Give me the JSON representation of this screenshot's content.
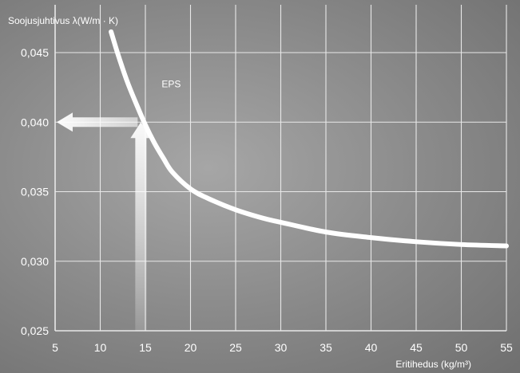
{
  "chart_data": {
    "type": "line",
    "ylabel": "Soojusjuhtivus λ(W/m · K)",
    "xlabel": "Eritihedus (kg/m³)",
    "xlim": [
      5,
      55
    ],
    "ylim": [
      0.025,
      0.0465
    ],
    "x_ticks": [
      5,
      10,
      15,
      20,
      25,
      30,
      35,
      40,
      45,
      50,
      55
    ],
    "y_ticks": [
      0.025,
      0.03,
      0.035,
      0.04,
      0.045
    ],
    "x_tick_labels": [
      "5",
      "10",
      "15",
      "20",
      "25",
      "30",
      "35",
      "40",
      "45",
      "50",
      "55"
    ],
    "y_tick_labels": [
      "0,025",
      "0,030",
      "0,035",
      "0,040",
      "0,045"
    ],
    "grid": true,
    "colors": {
      "line": "#ffffff",
      "grid": "#e8e8e8",
      "arrow": "#f2f5f7"
    },
    "series": [
      {
        "name": "EPS",
        "x": [
          11.2,
          12,
          13,
          14,
          15,
          16,
          17,
          18,
          20,
          22,
          25,
          28,
          30,
          35,
          40,
          45,
          50,
          55
        ],
        "y": [
          0.0465,
          0.0448,
          0.0429,
          0.0413,
          0.0398,
          0.0385,
          0.0374,
          0.0364,
          0.0352,
          0.0345,
          0.0337,
          0.0331,
          0.0328,
          0.0321,
          0.0317,
          0.0314,
          0.0312,
          0.0311
        ]
      }
    ],
    "annotations": [
      {
        "text": "EPS",
        "x": 16.8,
        "y": 0.0425
      }
    ],
    "reading_arrows": {
      "from_x": 14.5,
      "to_y": 0.04
    }
  }
}
